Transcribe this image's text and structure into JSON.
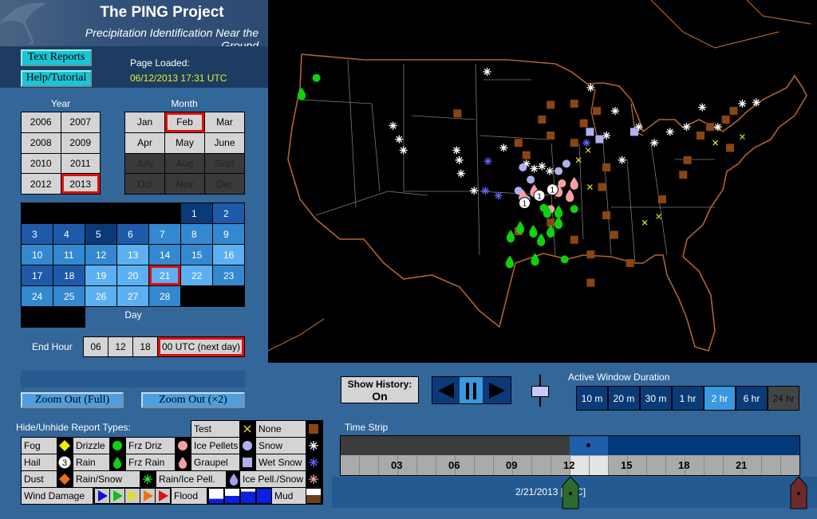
{
  "header": {
    "title": "The PING Project",
    "subtitle": "Precipitation Identification Near the Ground"
  },
  "buttons": {
    "text_reports": "Text Reports",
    "help": "Help/Tutorial",
    "zoom_full": "Zoom Out (Full)",
    "zoom_x2": "Zoom Out (×2)"
  },
  "page_loaded": {
    "label": "Page Loaded:",
    "value": "06/12/2013 17:31 UTC"
  },
  "year": {
    "label": "Year",
    "options": [
      "2006",
      "2007",
      "2008",
      "2009",
      "2010",
      "2011",
      "2012",
      "2013"
    ],
    "selected": "2013"
  },
  "month": {
    "label": "Month",
    "options": [
      "Jan",
      "Feb",
      "Mar",
      "Apr",
      "May",
      "June",
      "July",
      "Aug",
      "Sept",
      "Oct",
      "Nov",
      "Dec"
    ],
    "selected": "Feb",
    "disabled": [
      "July",
      "Aug",
      "Sept",
      "Oct",
      "Nov",
      "Dec"
    ]
  },
  "day": {
    "label": "Day",
    "selected": 21,
    "first_weekday_index": 5,
    "days": [
      1,
      2,
      3,
      4,
      5,
      6,
      7,
      8,
      9,
      10,
      11,
      12,
      13,
      14,
      15,
      16,
      17,
      18,
      19,
      20,
      21,
      22,
      23,
      24,
      25,
      26,
      27,
      28
    ],
    "activity_level": [
      0,
      1,
      1,
      1,
      0,
      1,
      2,
      2,
      2,
      2,
      2,
      2,
      3,
      2,
      2,
      3,
      1,
      1,
      3,
      3,
      3,
      3,
      2,
      2,
      2,
      3,
      3,
      2
    ]
  },
  "end_hour": {
    "label": "End Hour",
    "options": [
      "06",
      "12",
      "18",
      "00 UTC (next day)"
    ],
    "selected": "00 UTC (next day)"
  },
  "legend": {
    "title": "Hide/Unhide Report Types:",
    "items": {
      "test": "Test",
      "none": "None",
      "fog": "Fog",
      "drizzle": "Drizzle",
      "frz_driz": "Frz Driz",
      "ice_pellets": "Ice Pellets",
      "snow": "Snow",
      "hail": "Hail",
      "rain": "Rain",
      "frz_rain": "Frz Rain",
      "graupel": "Graupel",
      "wet_snow": "Wet Snow",
      "dust": "Dust",
      "rain_snow": "Rain/Snow",
      "rain_ice": "Rain/Ice Pell.",
      "ice_snow": "Ice Pell./Snow",
      "wind": "Wind Damage",
      "flood": "Flood",
      "mud": "Mud"
    },
    "hail_size_example": "3"
  },
  "controls": {
    "show_history_label": "Show History:",
    "show_history_value": "On",
    "playback_state": "paused",
    "duration_label": "Active Window Duration",
    "durations": [
      "10 m",
      "20 m",
      "30 m",
      "1 hr",
      "2 hr",
      "6 hr",
      "24 hr"
    ],
    "duration_selected": "2 hr"
  },
  "time_strip": {
    "label": "Time Strip",
    "hour_labels": [
      "03",
      "06",
      "09",
      "12",
      "15",
      "18",
      "21"
    ],
    "date": "2/21/2013 [UTC]",
    "active_window_hours": [
      12,
      14
    ]
  },
  "colors": {
    "panel": "#336699",
    "selected_outline": "#e01010",
    "map_bg": "#000000",
    "coast": "#b0652a",
    "loaded_time": "#e8f020"
  },
  "map": {
    "reports": [
      {
        "type": "frz_rain",
        "lat": 45.9,
        "lon": -124
      },
      {
        "type": "drizzle",
        "lat": 47.2,
        "lon": -122.3
      },
      {
        "type": "snow",
        "lat": 47.7,
        "lon": -102.7
      },
      {
        "type": "snow",
        "lat": 43.3,
        "lon": -113.5
      },
      {
        "type": "snow",
        "lat": 42.2,
        "lon": -112.8
      },
      {
        "type": "snow",
        "lat": 41.3,
        "lon": -112.3
      },
      {
        "type": "snow",
        "lat": 41.3,
        "lon": -106.2
      },
      {
        "type": "snow",
        "lat": 40.5,
        "lon": -105.9
      },
      {
        "type": "snow",
        "lat": 39.4,
        "lon": -105.7
      },
      {
        "type": "snow",
        "lat": 38,
        "lon": -104.2
      },
      {
        "type": "snow",
        "lat": 41.5,
        "lon": -100.8
      },
      {
        "type": "snow",
        "lat": 40.2,
        "lon": -98.2
      },
      {
        "type": "snow",
        "lat": 39.8,
        "lon": -97.3
      },
      {
        "type": "snow",
        "lat": 40,
        "lon": -96.4
      },
      {
        "type": "snow",
        "lat": 39.6,
        "lon": -95.5
      },
      {
        "type": "snow",
        "lat": 43.2,
        "lon": -85.3
      },
      {
        "type": "snow",
        "lat": 41.9,
        "lon": -83.5
      },
      {
        "type": "snow",
        "lat": 42.8,
        "lon": -81.7
      },
      {
        "type": "snow",
        "lat": 43.2,
        "lon": -79.8
      },
      {
        "type": "snow",
        "lat": 44.8,
        "lon": -78
      },
      {
        "type": "snow",
        "lat": 43.2,
        "lon": -76.2
      },
      {
        "type": "snow",
        "lat": 45.1,
        "lon": -73.4
      },
      {
        "type": "snow",
        "lat": 45.2,
        "lon": -71.8
      },
      {
        "type": "snow",
        "lat": 40.5,
        "lon": -87.2
      },
      {
        "type": "snow",
        "lat": 42.5,
        "lon": -89
      },
      {
        "type": "snow",
        "lat": 44.5,
        "lon": -88
      },
      {
        "type": "snow",
        "lat": 46.4,
        "lon": -90.8
      },
      {
        "type": "none",
        "lat": 44.3,
        "lon": -106.1
      },
      {
        "type": "none",
        "lat": 45,
        "lon": -95.4
      },
      {
        "type": "none",
        "lat": 43.8,
        "lon": -96.4
      },
      {
        "type": "none",
        "lat": 41.9,
        "lon": -99.1
      },
      {
        "type": "none",
        "lat": 40.9,
        "lon": -98.2
      },
      {
        "type": "none",
        "lat": 42.5,
        "lon": -95.4
      },
      {
        "type": "none",
        "lat": 45.1,
        "lon": -92.7
      },
      {
        "type": "none",
        "lat": 43.5,
        "lon": -91.6
      },
      {
        "type": "none",
        "lat": 44.5,
        "lon": -90.1
      },
      {
        "type": "none",
        "lat": 41.9,
        "lon": -92.7
      },
      {
        "type": "none",
        "lat": 35.4,
        "lon": -95.4
      },
      {
        "type": "none",
        "lat": 34,
        "lon": -92.7
      },
      {
        "type": "none",
        "lat": 36,
        "lon": -89
      },
      {
        "type": "none",
        "lat": 32.8,
        "lon": -90.8
      },
      {
        "type": "none",
        "lat": 34.4,
        "lon": -88.1
      },
      {
        "type": "none",
        "lat": 30.5,
        "lon": -90.8
      },
      {
        "type": "none",
        "lat": 32.1,
        "lon": -86.3
      },
      {
        "type": "none",
        "lat": 37.3,
        "lon": -82.6
      },
      {
        "type": "none",
        "lat": 40.5,
        "lon": -79.7
      },
      {
        "type": "none",
        "lat": 42.5,
        "lon": -78.2
      },
      {
        "type": "none",
        "lat": 43.2,
        "lon": -77.1
      },
      {
        "type": "none",
        "lat": 43.8,
        "lon": -75.3
      },
      {
        "type": "none",
        "lat": 44.5,
        "lon": -74.4
      },
      {
        "type": "none",
        "lat": 41.5,
        "lon": -74.8
      },
      {
        "type": "none",
        "lat": 39.3,
        "lon": -80.2
      },
      {
        "type": "none",
        "lat": 34.7,
        "lon": -99.1
      },
      {
        "type": "none",
        "lat": 39.9,
        "lon": -89
      },
      {
        "type": "none",
        "lat": 38.3,
        "lon": -89.5
      },
      {
        "type": "snow_dot",
        "lat": 39.9,
        "lon": -98.6
      },
      {
        "type": "snow_dot",
        "lat": 38.9,
        "lon": -97.7
      },
      {
        "type": "snow_dot",
        "lat": 39.6,
        "lon": -94.5
      },
      {
        "type": "snow_dot",
        "lat": 40.2,
        "lon": -93.6
      },
      {
        "type": "wet_snow",
        "lat": 42.8,
        "lon": -90.9
      },
      {
        "type": "wet_snow",
        "lat": 42.2,
        "lon": -89.8
      },
      {
        "type": "wet_snow",
        "lat": 42.8,
        "lon": -85.8
      },
      {
        "type": "snow_dot",
        "lat": 38,
        "lon": -99.1
      },
      {
        "type": "snow_dot",
        "lat": 37.3,
        "lon": -98.2
      },
      {
        "type": "graupel",
        "lat": 37.6,
        "lon": -98.6
      },
      {
        "type": "graupel",
        "lat": 38,
        "lon": -97.3
      },
      {
        "type": "graupel",
        "lat": 38,
        "lon": -94.5
      },
      {
        "type": "graupel",
        "lat": 37.6,
        "lon": -93.2
      },
      {
        "type": "ice_pellets",
        "lat": 36.5,
        "lon": -95.4
      },
      {
        "type": "graupel",
        "lat": 38.6,
        "lon": -92.7
      },
      {
        "type": "ice_pellets",
        "lat": 38.6,
        "lon": -94.1
      },
      {
        "type": "hail",
        "lat": 37,
        "lon": -98.4
      },
      {
        "type": "hail",
        "lat": 37.6,
        "lon": -96.7
      },
      {
        "type": "hail",
        "lat": 38.1,
        "lon": -95.2
      },
      {
        "type": "frz_rain",
        "lat": 34.3,
        "lon": -100
      },
      {
        "type": "frz_rain",
        "lat": 35,
        "lon": -98.9
      },
      {
        "type": "frz_rain",
        "lat": 34.7,
        "lon": -97.4
      },
      {
        "type": "frz_rain",
        "lat": 34.7,
        "lon": -95.4
      },
      {
        "type": "frz_rain",
        "lat": 35.4,
        "lon": -94.5
      },
      {
        "type": "frz_rain",
        "lat": 32.2,
        "lon": -100.1
      },
      {
        "type": "frz_rain",
        "lat": 32.4,
        "lon": -97.2
      },
      {
        "type": "frz_rain",
        "lat": 34,
        "lon": -96.5
      },
      {
        "type": "frz_rain",
        "lat": 36.3,
        "lon": -95.8
      },
      {
        "type": "frz_rain",
        "lat": 36.3,
        "lon": -94.5
      },
      {
        "type": "drizzle",
        "lat": 36.6,
        "lon": -96.2
      },
      {
        "type": "drizzle",
        "lat": 36.5,
        "lon": -92.7
      },
      {
        "type": "drizzle",
        "lat": 32.4,
        "lon": -93.8
      },
      {
        "type": "test",
        "lat": 41.3,
        "lon": -91.1
      },
      {
        "type": "test",
        "lat": 40.5,
        "lon": -92.2
      },
      {
        "type": "test",
        "lat": 35.4,
        "lon": -84.6
      },
      {
        "type": "test",
        "lat": 35.9,
        "lon": -83
      },
      {
        "type": "test",
        "lat": 41.9,
        "lon": -76.5
      },
      {
        "type": "test",
        "lat": 42.4,
        "lon": -73.4
      },
      {
        "type": "test",
        "lat": 38.3,
        "lon": -90.9
      },
      {
        "type": "wet_star",
        "lat": 40.4,
        "lon": -102.6
      },
      {
        "type": "wet_star",
        "lat": 38,
        "lon": -102.9
      },
      {
        "type": "wet_star",
        "lat": 37.6,
        "lon": -101.4
      },
      {
        "type": "wet_star",
        "lat": 41.9,
        "lon": -91.3
      }
    ]
  }
}
